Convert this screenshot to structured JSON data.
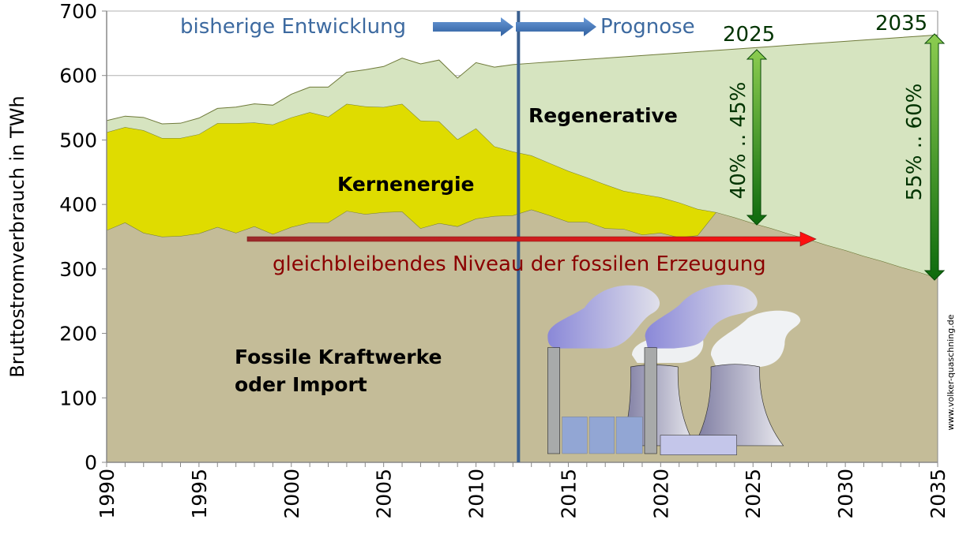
{
  "chart_data": {
    "type": "area",
    "stacked": true,
    "ylabel": "Bruttostromverbrauch in TWh",
    "xlabel": "",
    "ylim": [
      0,
      700
    ],
    "xlim": [
      1990,
      2035
    ],
    "yticks": [
      0,
      100,
      200,
      300,
      400,
      500,
      600,
      700
    ],
    "xticks": [
      1990,
      1995,
      2000,
      2005,
      2010,
      2015,
      2020,
      2025,
      2030,
      2035
    ],
    "grid": true,
    "x": [
      1990,
      1991,
      1992,
      1993,
      1994,
      1995,
      1996,
      1997,
      1998,
      1999,
      2000,
      2001,
      2002,
      2003,
      2004,
      2005,
      2006,
      2007,
      2008,
      2009,
      2010,
      2011,
      2012,
      2013,
      2014,
      2015,
      2016,
      2017,
      2018,
      2019,
      2020,
      2021,
      2022,
      2023,
      2024,
      2025,
      2026,
      2027,
      2028,
      2029,
      2030,
      2031,
      2032,
      2033,
      2034,
      2035
    ],
    "series": [
      {
        "name": "Fossile Kraftwerke oder Import",
        "color": "#c4bc98",
        "values": [
          360,
          372,
          356,
          350,
          351,
          355,
          365,
          356,
          366,
          354,
          365,
          372,
          372,
          390,
          385,
          388,
          389,
          363,
          371,
          366,
          378,
          382,
          383,
          392,
          383,
          373,
          373,
          363,
          362,
          353,
          356,
          349,
          352,
          388,
          380,
          371,
          363,
          354,
          346,
          337,
          329,
          320,
          312,
          303,
          295,
          286
        ]
      },
      {
        "name": "Kernenergie",
        "color": "#dfdc00",
        "values": [
          152,
          148,
          159,
          153,
          152,
          154,
          161,
          170,
          161,
          170,
          170,
          171,
          164,
          166,
          167,
          163,
          167,
          167,
          158,
          135,
          140,
          108,
          99,
          84,
          81,
          79,
          69,
          68,
          59,
          63,
          55,
          54,
          41,
          0,
          0,
          0,
          0,
          0,
          0,
          0,
          0,
          0,
          0,
          0,
          0,
          0
        ]
      },
      {
        "name": "Regenerative",
        "color": "#d6e4c0",
        "values": [
          18,
          17,
          20,
          22,
          23,
          25,
          23,
          25,
          29,
          30,
          36,
          39,
          46,
          49,
          57,
          63,
          71,
          88,
          95,
          95,
          102,
          123,
          135,
          143,
          157,
          171,
          183,
          196,
          208,
          215,
          222,
          232,
          244,
          251,
          261,
          272,
          282,
          293,
          303,
          314,
          324,
          335,
          345,
          356,
          366,
          377
        ]
      }
    ],
    "divider_year": 2012.3,
    "annotations": {
      "history": "bisherige Entwicklung",
      "forecast": "Prognose",
      "fossil_level": "gleichbleibendes Niveau der fossilen Erzeugung",
      "label_regen": "Regenerative",
      "label_nuclear": "Kernenergie",
      "label_fossil_1": "Fossile Kraftwerke",
      "label_fossil_2": "oder Import",
      "year_2025": "2025",
      "year_2035": "2035",
      "share_2025": "40% .. 45%",
      "share_2035": "55% .. 60%",
      "watermark": "www.volker-quaschning.de"
    },
    "colors": {
      "divider": "#3a5f8f",
      "history_text": "#3d6aa0",
      "red_arrow": "#e01010",
      "red_text": "#8b0000",
      "share_arrow": "#2e8b1e",
      "share_text": "#003300"
    }
  }
}
